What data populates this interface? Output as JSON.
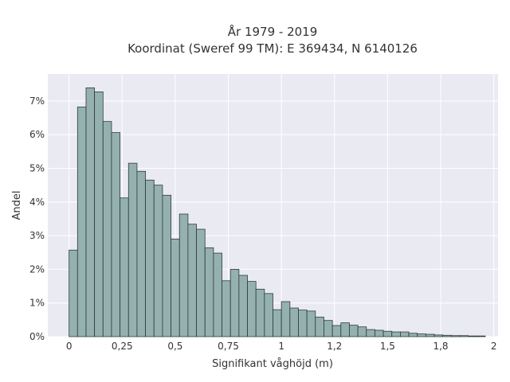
{
  "chart_data": {
    "type": "bar",
    "title_lines": [
      "År 1979 - 2019",
      "Koordinat (Sweref 99 TM): E 369434, N 6140126"
    ],
    "xlabel": "Signifikant våghöjd (m)",
    "ylabel": "Andel",
    "xlim": [
      -0.1,
      2.02
    ],
    "ylim": [
      0,
      0.078
    ],
    "x_ticks": [
      0,
      0.25,
      0.5,
      0.75,
      1,
      1.25,
      1.5,
      1.75,
      2
    ],
    "x_tick_labels": [
      "0",
      "0,25",
      "0,5",
      "0,75",
      "1",
      "1,2",
      "1,5",
      "1,8",
      "2"
    ],
    "y_ticks": [
      0,
      0.01,
      0.02,
      0.03,
      0.04,
      0.05,
      0.06,
      0.07
    ],
    "y_tick_labels": [
      "0%",
      "1%",
      "2%",
      "3%",
      "4%",
      "5%",
      "6%",
      "7%"
    ],
    "bin_start": 0,
    "bin_width": 0.04,
    "values": [
      0.0257,
      0.0682,
      0.0739,
      0.0727,
      0.0639,
      0.0606,
      0.0412,
      0.0515,
      0.0491,
      0.0465,
      0.045,
      0.042,
      0.029,
      0.0364,
      0.0334,
      0.0319,
      0.0264,
      0.0248,
      0.0166,
      0.02,
      0.0182,
      0.0164,
      0.0141,
      0.0128,
      0.008,
      0.0104,
      0.0085,
      0.0079,
      0.0076,
      0.0058,
      0.0048,
      0.0033,
      0.0041,
      0.0034,
      0.0029,
      0.0021,
      0.0019,
      0.0016,
      0.0014,
      0.0014,
      0.001,
      0.0008,
      0.0007,
      0.0005,
      0.0004,
      0.0003,
      0.0003,
      0.0002,
      0.0002
    ],
    "grid": true,
    "colors": {
      "plot_bg": "#eaeaf2",
      "grid": "#ffffff",
      "bar_fill": "#95b1af",
      "bar_edge": "#2d3a39",
      "text": "#333333"
    }
  }
}
